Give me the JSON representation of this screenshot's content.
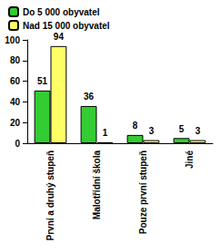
{
  "chart_data": {
    "type": "bar",
    "categories": [
      "První a druhý stupeň",
      "Malotřídní škola",
      "Pouze první stupeň",
      "Jiné"
    ],
    "series": [
      {
        "name": "Do 5 000 obyvatel",
        "color": "#33cc33",
        "values": [
          51,
          36,
          8,
          5
        ]
      },
      {
        "name": "Nad 15 000 obyvatel",
        "color": "#ffff66",
        "values": [
          94,
          1,
          3,
          3
        ]
      }
    ],
    "ylim": [
      0,
      100
    ],
    "yticks": [
      0,
      20,
      40,
      60,
      80,
      100
    ],
    "grid": false,
    "legend": "top-left",
    "data_labels": true
  }
}
